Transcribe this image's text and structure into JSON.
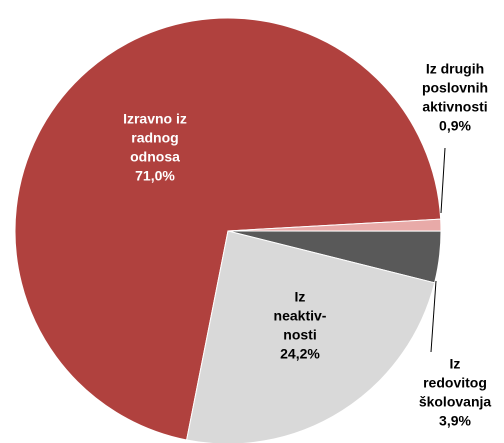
{
  "chart_data": {
    "type": "pie",
    "categories": [
      [
        "Izravno iz",
        "radnog",
        "odnosa"
      ],
      [
        "Iz drugih",
        "poslovnih",
        "aktivnosti"
      ],
      [
        "Iz",
        "redovitog",
        "školovanja"
      ],
      [
        "Iz",
        "neaktiv-",
        "nosti"
      ]
    ],
    "values": [
      71.0,
      0.9,
      3.9,
      24.2
    ],
    "value_labels": [
      "71,0%",
      "0,9%",
      "3,9%",
      "24,2%"
    ],
    "colors": [
      "#b0413e",
      "#e8aaa8",
      "#595959",
      "#d9d9d9"
    ]
  }
}
